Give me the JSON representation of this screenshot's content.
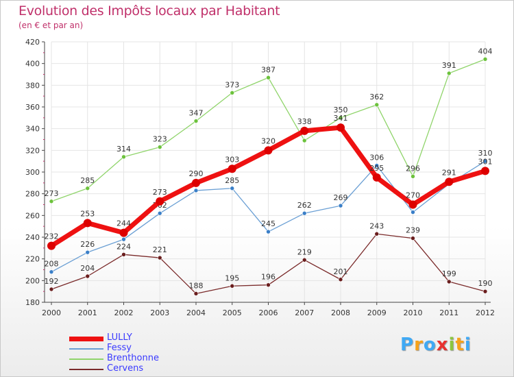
{
  "header": {
    "title": "Evolution des Impôts locaux par Habitant",
    "subtitle": "(en € et par an)"
  },
  "colors": {
    "title": "#c0306a",
    "legend_text": "#3a3aff",
    "axis": "#444444",
    "grid": "#e4e4e4"
  },
  "logo": {
    "text": "Proxiti",
    "letters": [
      {
        "ch": "P",
        "color": "#3fa9f5"
      },
      {
        "ch": "r",
        "color": "#f7a21b"
      },
      {
        "ch": "o",
        "color": "#3fa9f5"
      },
      {
        "ch": "x",
        "color": "#e8312f"
      },
      {
        "ch": "i",
        "color": "#8cc63f"
      },
      {
        "ch": "t",
        "color": "#f7a21b"
      },
      {
        "ch": "i",
        "color": "#3fa9f5"
      }
    ]
  },
  "chart_data": {
    "type": "line",
    "title": "Evolution des Impôts locaux par Habitant",
    "subtitle": "(en € et par an)",
    "xlabel": "",
    "ylabel": "",
    "categories": [
      "2000",
      "2001",
      "2002",
      "2003",
      "2004",
      "2005",
      "2006",
      "2007",
      "2008",
      "2009",
      "2010",
      "2011",
      "2012"
    ],
    "ylim": [
      180,
      420
    ],
    "yticks": [
      180,
      200,
      220,
      240,
      260,
      280,
      300,
      320,
      340,
      360,
      380,
      400,
      420
    ],
    "grid": true,
    "legend_position": "bottom-left",
    "series": [
      {
        "name": "Brenthonne",
        "color": "#8fd46a",
        "dot": "#6cc23c",
        "width": 1.3,
        "dot_r": 3,
        "values": [
          273,
          285,
          314,
          323,
          347,
          373,
          387,
          329,
          350,
          362,
          296,
          391,
          404
        ],
        "labels": [
          "273",
          "285",
          "314",
          "323",
          "347",
          "373",
          "387",
          "",
          "350",
          "362",
          "296",
          "391",
          "404"
        ]
      },
      {
        "name": "Fessy",
        "color": "#6a9fd4",
        "dot": "#3a7fc8",
        "width": 1.3,
        "dot_r": 3,
        "values": [
          208,
          226,
          238,
          262,
          283,
          285,
          245,
          262,
          269,
          306,
          263,
          289,
          310
        ],
        "labels": [
          "208",
          "226",
          "",
          "262",
          "",
          "285",
          "245",
          "262",
          "269",
          "306",
          "",
          "",
          "310"
        ]
      },
      {
        "name": "Cervens",
        "color": "#7a2a2a",
        "dot": "#6a1e1e",
        "width": 1.3,
        "dot_r": 3,
        "values": [
          192,
          204,
          224,
          221,
          188,
          195,
          196,
          219,
          201,
          243,
          239,
          199,
          190
        ],
        "labels": [
          "192",
          "204",
          "224",
          "221",
          "188",
          "195",
          "196",
          "219",
          "201",
          "243",
          "239",
          "199",
          "190"
        ]
      },
      {
        "name": "LULLY",
        "color": "#ee1111",
        "dot": "#dd0000",
        "width": 7,
        "dot_r": 6,
        "values": [
          232,
          253,
          244,
          273,
          290,
          303,
          320,
          338,
          341,
          295,
          270,
          291,
          301
        ],
        "labels": [
          "232",
          "253",
          "244",
          "273",
          "290",
          "303",
          "320",
          "338",
          "341",
          "295",
          "270",
          "291",
          "301"
        ]
      }
    ],
    "hidden_label_values": {
      "Brenthonne": {
        "2007": 329
      },
      "Fessy": {
        "2002": 238,
        "2004": 283,
        "2010": 263,
        "2011": 289
      }
    }
  },
  "legend": {
    "items": [
      {
        "name": "LULLY",
        "color": "#ee1111",
        "thickness": 7
      },
      {
        "name": "Fessy",
        "color": "#6a9fd4",
        "thickness": 2
      },
      {
        "name": "Brenthonne",
        "color": "#8fd46a",
        "thickness": 2
      },
      {
        "name": "Cervens",
        "color": "#7a2a2a",
        "thickness": 2
      }
    ]
  }
}
